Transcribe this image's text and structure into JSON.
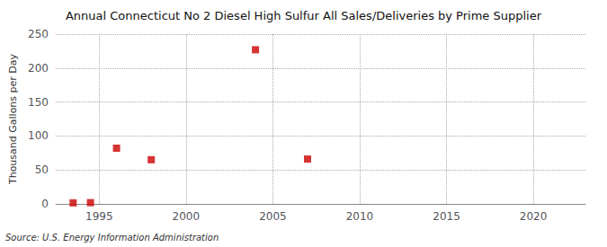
{
  "chart_data": {
    "type": "scatter",
    "title": "Annual Connecticut No 2 Diesel High Sulfur All Sales/Deliveries by Prime Supplier",
    "ylabel": "Thousand Gallons per Day",
    "annotation": "Source: U.S. Energy Information Administration",
    "x": [
      1993.5,
      1994.5,
      1996,
      1998,
      2004,
      2007
    ],
    "values": [
      1.5,
      1.8,
      82.0,
      65.0,
      227.0,
      66.0
    ],
    "color": "#cc0000",
    "marker": "square",
    "xlim": [
      1992.5,
      2023
    ],
    "xticks": [
      1995,
      2000,
      2005,
      2010,
      2015,
      2020
    ],
    "ylim": [
      0,
      250
    ],
    "yticks": [
      0,
      50,
      100,
      150,
      200,
      250
    ],
    "grid": true
  }
}
